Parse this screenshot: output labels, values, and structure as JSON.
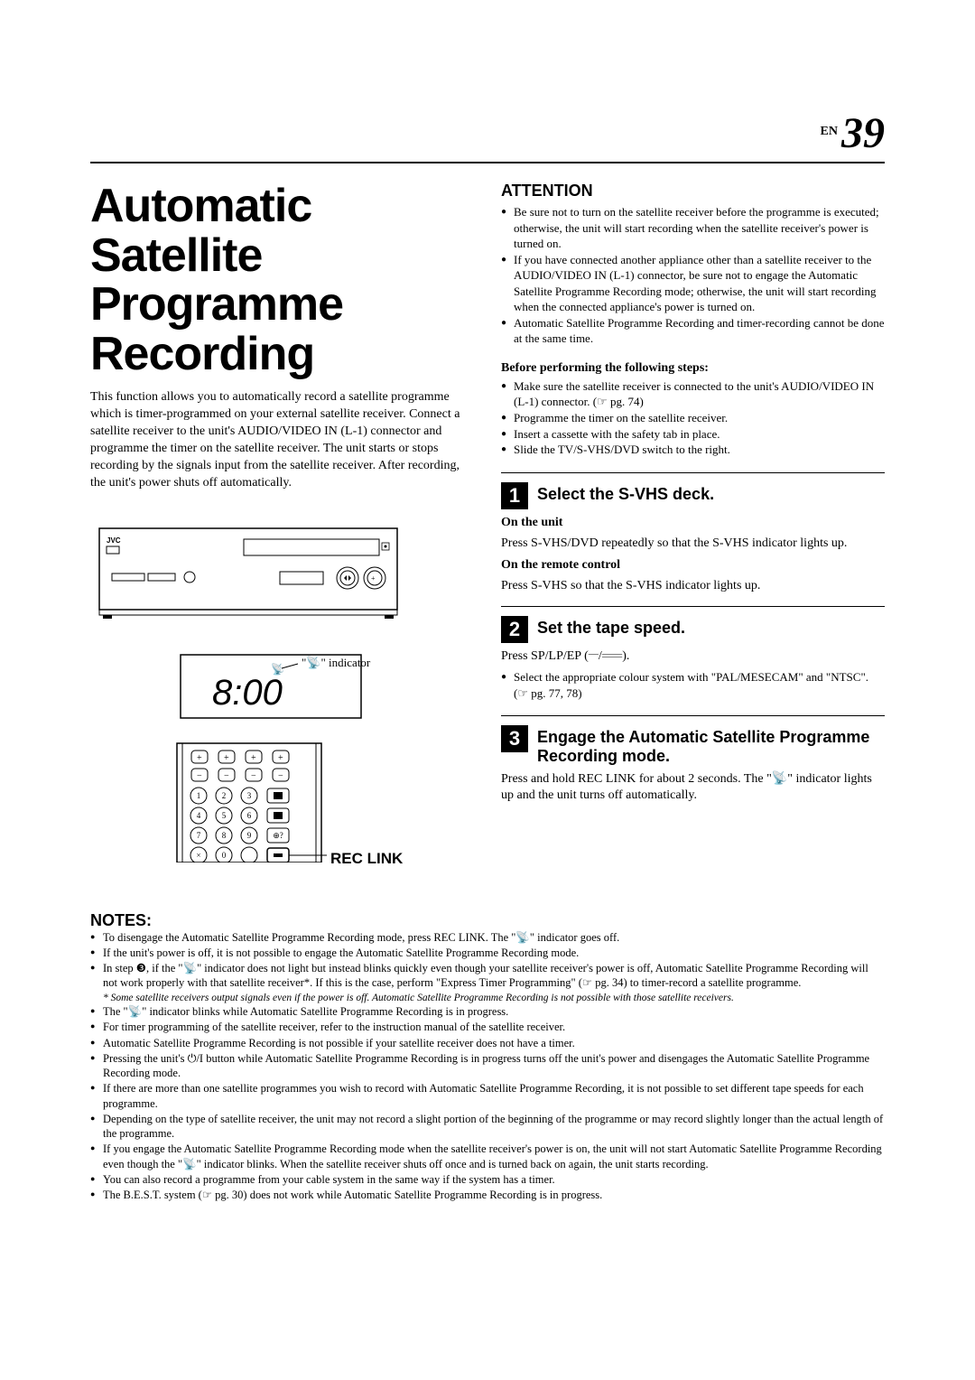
{
  "page": {
    "prefix": "EN",
    "number": "39"
  },
  "title": "Automatic Satellite Programme Recording",
  "intro": "This function allows you to automatically record a satellite programme which is timer-programmed on your external satellite receiver. Connect a satellite receiver to the unit's AUDIO/VIDEO IN (L-1) connector and programme the timer on the satellite receiver. The unit starts or stops recording by the signals input from the satellite receiver. After recording, the unit's power shuts off automatically.",
  "figure": {
    "indicator_label": "\"📡\" indicator",
    "display_time": "8:00",
    "rec_link_label": "REC LINK",
    "brand": "JVC"
  },
  "attention": {
    "heading": "ATTENTION",
    "items": [
      "Be sure not to turn on the satellite receiver before the programme is executed; otherwise, the unit will start recording when the satellite receiver's power is turned on.",
      "If you have connected another appliance other than a satellite receiver to the AUDIO/VIDEO IN (L-1) connector, be sure not to engage the Automatic Satellite Programme Recording mode; otherwise, the unit will start recording when the connected appliance's power is turned on.",
      "Automatic Satellite Programme Recording and timer-recording cannot be done at the same time."
    ]
  },
  "before": {
    "heading": "Before performing the following steps:",
    "items": [
      "Make sure the satellite receiver is connected to the unit's AUDIO/VIDEO IN (L-1) connector. (☞ pg. 74)",
      "Programme the timer on the satellite receiver.",
      "Insert a cassette with the safety tab in place.",
      "Slide the TV/S-VHS/DVD switch to the right."
    ]
  },
  "steps": [
    {
      "num": "1",
      "title": "Select the S-VHS deck.",
      "blocks": [
        {
          "sub": "On the unit",
          "text": "Press S-VHS/DVD repeatedly so that the S-VHS indicator lights up."
        },
        {
          "sub": "On the remote control",
          "text": "Press S-VHS so that the S-VHS indicator lights up."
        }
      ]
    },
    {
      "num": "2",
      "title": "Set the tape speed.",
      "line": "Press SP/LP/EP (𝄖/𝄗𝄗).",
      "bullets": [
        "Select the appropriate colour system with \"PAL/MESECAM\" and \"NTSC\". (☞ pg. 77, 78)"
      ]
    },
    {
      "num": "3",
      "title": "Engage the Automatic Satellite Programme Recording mode.",
      "text": "Press and hold REC LINK for about 2 seconds. The \"📡\" indicator lights up and the unit turns off automatically."
    }
  ],
  "notes": {
    "heading": "NOTES:",
    "items": [
      "To disengage the Automatic Satellite Programme Recording mode, press REC LINK. The \"📡\" indicator goes off.",
      "If the unit's power is off, it is not possible to engage the Automatic Satellite Programme Recording mode.",
      "In step ❸, if the \"📡\" indicator does not light but instead blinks quickly even though your satellite receiver's power is off, Automatic Satellite Programme Recording will not work properly with that satellite receiver*. If this is the case, perform \"Express Timer Programming\" (☞ pg. 34) to timer-record a satellite programme.",
      "The \"📡\" indicator blinks while Automatic Satellite Programme Recording is in progress.",
      "For timer programming of the satellite receiver, refer to the instruction manual of the satellite receiver.",
      "Automatic Satellite Programme Recording is not possible if your satellite receiver does not have a timer.",
      "Pressing the unit's ⏻/I button while Automatic Satellite Programme Recording is in progress turns off the unit's power and disengages the Automatic Satellite Programme Recording mode.",
      "If there are more than one satellite programmes you wish to record with Automatic Satellite Programme Recording, it is not possible to set different tape speeds for each programme.",
      "Depending on the type of satellite receiver, the unit may not record a slight portion of the beginning of the programme or may record slightly longer than the actual length of the programme.",
      "If you engage the Automatic Satellite Programme Recording mode when the satellite receiver's power is on, the unit will not start Automatic Satellite Programme Recording even though the \"📡\" indicator blinks. When the satellite receiver shuts off once and is turned back on again, the unit starts recording.",
      "You can also record a programme from your cable system in the same way if the system has a timer.",
      "The B.E.S.T. system (☞ pg. 30) does not work while Automatic Satellite Programme Recording is in progress."
    ],
    "footnote": "* Some satellite receivers output signals even if the power is off. Automatic Satellite Programme Recording is not possible with those satellite receivers.",
    "footnote_after_index": 2
  }
}
